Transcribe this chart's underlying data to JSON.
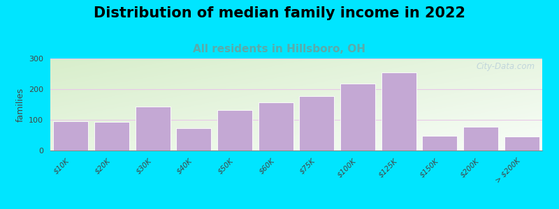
{
  "title": "Distribution of median family income in 2022",
  "subtitle": "All residents in Hillsboro, OH",
  "ylabel": "families",
  "categories": [
    "$10K",
    "$20K",
    "$30K",
    "$40K",
    "$50K",
    "$60K",
    "$75K",
    "$100K",
    "$125K",
    "$150K",
    "$200K",
    "> $200K"
  ],
  "values": [
    95,
    93,
    143,
    72,
    132,
    157,
    177,
    218,
    255,
    48,
    77,
    46
  ],
  "bar_color": "#c4a8d4",
  "bar_edge_color": "#ffffff",
  "background_outer": "#00e5ff",
  "gradient_top_left": "#d8eecb",
  "gradient_bottom_right": "#f0f8ee",
  "grid_color": "#e8c8e8",
  "ylim": [
    0,
    300
  ],
  "yticks": [
    0,
    100,
    200,
    300
  ],
  "title_fontsize": 15,
  "subtitle_fontsize": 11,
  "subtitle_color": "#5aabab",
  "ylabel_fontsize": 9,
  "tick_fontsize": 7.5,
  "watermark": "City-Data.com",
  "watermark_color": "#b0c8d8",
  "watermark_alpha": 0.7
}
